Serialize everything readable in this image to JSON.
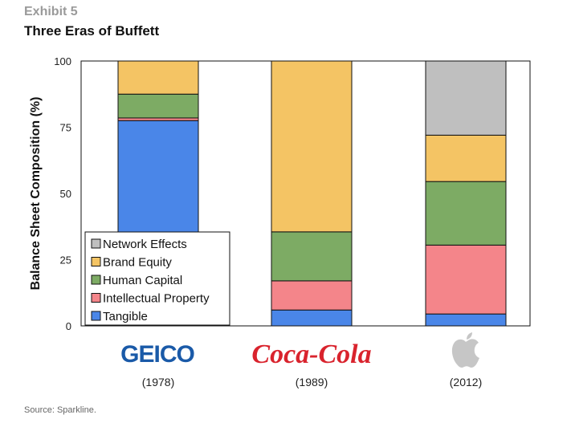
{
  "header": {
    "exhibit": "Exhibit 5",
    "title": "Three Eras of Buffett"
  },
  "source": "Source: Sparkline.",
  "chart_data": {
    "type": "bar",
    "stacked": true,
    "title": "Three Eras of Buffett",
    "xlabel": "",
    "ylabel": "Balance Sheet Composition (%)",
    "ylim": [
      0,
      100
    ],
    "yticks": [
      0,
      25,
      50,
      75,
      100
    ],
    "categories": [
      "GEICO",
      "Coca-Cola",
      "Apple"
    ],
    "years": [
      "(1978)",
      "(1989)",
      "(2012)"
    ],
    "series": [
      {
        "name": "Tangible",
        "color": "#4a86e8",
        "values": [
          77.5,
          6,
          4.5
        ]
      },
      {
        "name": "Intellectual Property",
        "color": "#f4858a",
        "values": [
          1,
          11,
          26
        ]
      },
      {
        "name": "Human Capital",
        "color": "#7dab64",
        "values": [
          9,
          18.5,
          24
        ]
      },
      {
        "name": "Brand Equity",
        "color": "#f4c464",
        "values": [
          12.5,
          64.5,
          17.5
        ]
      },
      {
        "name": "Network Effects",
        "color": "#bfbfbf",
        "values": [
          0,
          0,
          28
        ]
      }
    ],
    "legend": {
      "placement": "lower-left",
      "order": [
        "Network Effects",
        "Brand Equity",
        "Human Capital",
        "Intellectual Property",
        "Tangible"
      ]
    },
    "logos": {
      "geico": "GEICO",
      "coke": "Coca-Cola"
    }
  }
}
